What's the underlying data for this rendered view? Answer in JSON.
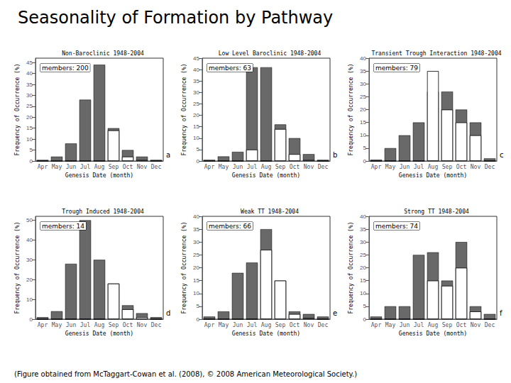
{
  "title": "Seasonality of Formation by Pathway",
  "caption": "(Figure obtained from McTaggart-Cowan et al. (2008), © 2008 American Meteorological Society.)",
  "chart_data": [
    {
      "type": "bar",
      "title": "Non-Baroclinic 1948-2004",
      "annotations": [
        "members: 200",
        "a"
      ],
      "xlabel": "Genesis Date (month)",
      "ylabel": "Frequency of Occurrence (%)",
      "categories": [
        "Apr",
        "May",
        "Jun",
        "Jul",
        "Aug",
        "Sep",
        "Oct",
        "Nov",
        "Dec"
      ],
      "series": [
        {
          "color": "#696969",
          "values": [
            0.5,
            2,
            8,
            28,
            44,
            15,
            5,
            2,
            0.5
          ]
        },
        {
          "color": "#ffffff",
          "values": [
            0,
            0,
            0,
            0,
            0,
            14,
            2,
            0.5,
            0
          ]
        }
      ],
      "ylim": [
        0,
        47
      ],
      "yticks": [
        0,
        5,
        10,
        15,
        20,
        25,
        30,
        35,
        40,
        45
      ],
      "grid": false
    },
    {
      "type": "bar",
      "title": "Low Level Baroclinic 1948-2004",
      "annotations": [
        "members: 63",
        "b"
      ],
      "xlabel": "Genesis Date (month)",
      "ylabel": "Frequency of Occurrence (%)",
      "categories": [
        "Apr",
        "May",
        "Jun",
        "Jul",
        "Aug",
        "Sep",
        "Oct",
        "Nov",
        "Dec"
      ],
      "series": [
        {
          "color": "#696969",
          "values": [
            0.5,
            2,
            4,
            41,
            41,
            16,
            10,
            3,
            0.5
          ]
        },
        {
          "color": "#ffffff",
          "values": [
            0,
            0,
            0,
            5,
            0,
            14,
            3,
            0.5,
            0
          ]
        }
      ],
      "ylim": [
        0,
        45
      ],
      "yticks": [
        0,
        5,
        10,
        15,
        20,
        25,
        30,
        35,
        40,
        45
      ],
      "grid": false
    },
    {
      "type": "bar",
      "title": "Transient Trough Interaction 1948-2004",
      "annotations": [
        "members: 79",
        "c"
      ],
      "xlabel": "Genesis Date (month)",
      "ylabel": "Frequency of Occurrence (%)",
      "categories": [
        "Apr",
        "May",
        "Jun",
        "Jul",
        "Aug",
        "Sep",
        "Oct",
        "Nov",
        "Dec"
      ],
      "series": [
        {
          "color": "#696969",
          "values": [
            0.5,
            5,
            10,
            15,
            27,
            27,
            20,
            15,
            1
          ]
        },
        {
          "color": "#ffffff",
          "values": [
            0,
            0,
            0,
            0,
            35,
            20,
            15,
            10,
            0
          ]
        }
      ],
      "ylim": [
        0,
        40
      ],
      "yticks": [
        0,
        5,
        10,
        15,
        20,
        25,
        30,
        35,
        40
      ],
      "grid": false
    },
    {
      "type": "bar",
      "title": "Trough Induced 1948-2004",
      "annotations": [
        "members: 14",
        "d"
      ],
      "xlabel": "Genesis Date (month)",
      "ylabel": "Frequency of Occurrence (%)",
      "categories": [
        "Apr",
        "May",
        "Jun",
        "Jul",
        "Aug",
        "Sep",
        "Oct",
        "Nov",
        "Dec"
      ],
      "series": [
        {
          "color": "#696969",
          "values": [
            1,
            4,
            28,
            50,
            30,
            18,
            7,
            3,
            1
          ]
        },
        {
          "color": "#ffffff",
          "values": [
            0,
            0,
            0,
            0,
            0,
            18,
            5,
            1,
            0
          ]
        }
      ],
      "ylim": [
        0,
        52
      ],
      "yticks": [
        0,
        10,
        20,
        30,
        40,
        50
      ],
      "grid": false
    },
    {
      "type": "bar",
      "title": "Weak TT 1948-2004",
      "annotations": [
        "members: 66",
        "e"
      ],
      "xlabel": "Genesis Date (month)",
      "ylabel": "Frequency of Occurrence (%)",
      "categories": [
        "Apr",
        "May",
        "Jun",
        "Jul",
        "Aug",
        "Sep",
        "Oct",
        "Nov",
        "Dec"
      ],
      "series": [
        {
          "color": "#696969",
          "values": [
            1,
            3,
            18,
            22,
            35,
            15,
            3,
            2,
            1
          ]
        },
        {
          "color": "#ffffff",
          "values": [
            0,
            0,
            0,
            0,
            27,
            15,
            2,
            0.5,
            0
          ]
        }
      ],
      "ylim": [
        0,
        40
      ],
      "yticks": [
        0,
        5,
        10,
        15,
        20,
        25,
        30,
        35,
        40
      ],
      "grid": false
    },
    {
      "type": "bar",
      "title": "Strong TT 1948-2004",
      "annotations": [
        "members: 74",
        "f"
      ],
      "xlabel": "Genesis Date (month)",
      "ylabel": "Frequency of Occurrence (%)",
      "categories": [
        "Apr",
        "May",
        "Jun",
        "Jul",
        "Aug",
        "Sep",
        "Oct",
        "Nov",
        "Dec"
      ],
      "series": [
        {
          "color": "#696969",
          "values": [
            1,
            5,
            5,
            25,
            26,
            15,
            30,
            5,
            2
          ]
        },
        {
          "color": "#ffffff",
          "values": [
            0,
            0,
            0,
            0,
            15,
            13,
            20,
            3,
            0
          ]
        }
      ],
      "ylim": [
        0,
        40
      ],
      "yticks": [
        0,
        5,
        10,
        15,
        20,
        25,
        30,
        35,
        40
      ],
      "grid": false
    }
  ]
}
